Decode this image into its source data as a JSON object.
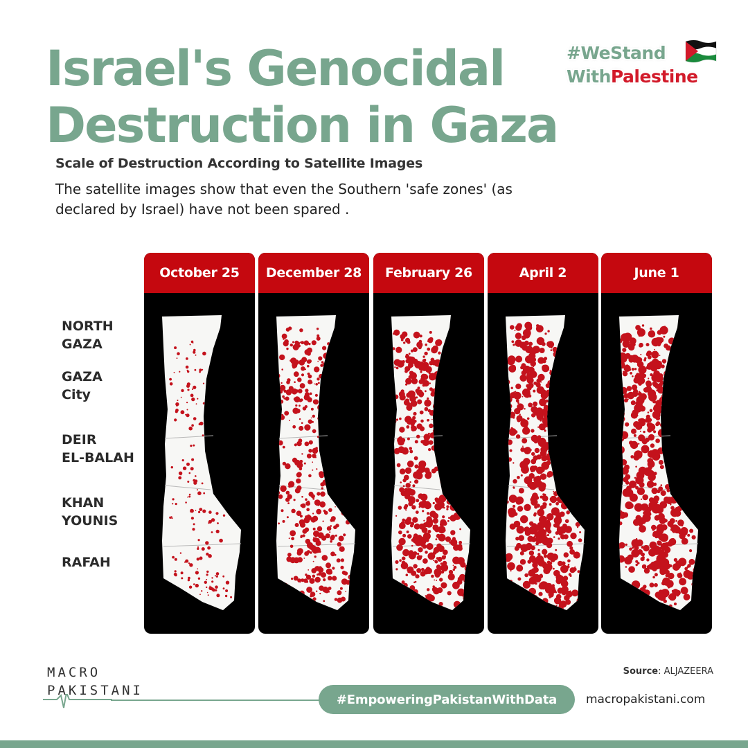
{
  "title": {
    "line1": "Israel's Genocidal",
    "line2": "Destruction in Gaza"
  },
  "hashtag": {
    "part1": "#WeStand",
    "part2a": "With",
    "part2b": "Palestine"
  },
  "subtitle": "Scale of Destruction According to Satellite Images",
  "description": "The satellite images show that even the Southern 'safe zones' (as declared by Israel) have not been spared .",
  "regions": [
    {
      "label": "NORTH\nGAZA"
    },
    {
      "label": "GAZA\nCity"
    },
    {
      "label": "DEIR\nEL-BALAH"
    },
    {
      "label": "KHAN\nYOUNIS"
    },
    {
      "label": "RAFAH"
    }
  ],
  "panels": [
    {
      "date": "October 25",
      "level": 0.2
    },
    {
      "date": "December 28",
      "level": 0.6
    },
    {
      "date": "February 26",
      "level": 0.8
    },
    {
      "date": "April 2",
      "level": 0.9
    },
    {
      "date": "June 1",
      "level": 0.95
    }
  ],
  "source": {
    "label": "Source",
    "value": ": ALJAZEERA"
  },
  "logo": {
    "line1": "MACRO",
    "line2": "PAKISTANI"
  },
  "footer_hashtag": "#EmpoweringPakistanWithData",
  "website": "macropakistani.com",
  "colors": {
    "green": "#78a68e",
    "red": "#c5080f",
    "damage": "#c4121c",
    "black": "#000000"
  },
  "icons": {
    "flag": "palestine-flag-icon"
  }
}
